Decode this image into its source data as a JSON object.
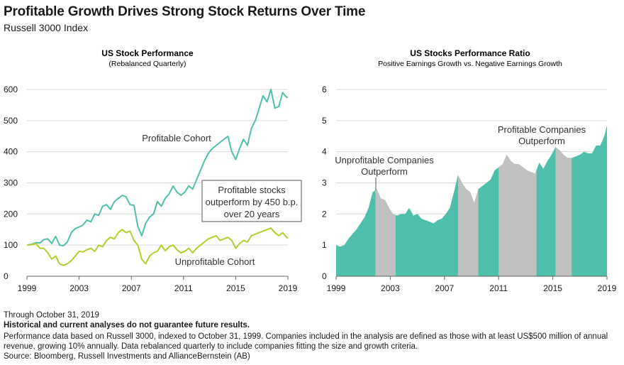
{
  "header": {
    "title": "Profitable Growth Drives Strong Stock Returns Over Time",
    "subtitle": "Russell 3000 Index"
  },
  "colors": {
    "profitable": "#4dbfab",
    "unprofitable": "#b5cc2e",
    "ratio_fill": "#4dbfab",
    "shade": "#c0c0c0"
  },
  "footer": {
    "date": "Through October 31, 2019",
    "disclaimer": "Historical and current analyses do not guarantee future results.",
    "note1": "Performance data based on Russell 3000, indexed to October 31, 1999. Companies included in the analysis are defined as those with at least US$500 million of annual",
    "note2": "revenue, growing 10% annually.  Data rebalanced quarterly to include companies fitting the size and growth criteria.",
    "source": "Source: Bloomberg, Russell Investments and AllianceBernstein (AB)"
  },
  "chart_data": [
    {
      "type": "line",
      "title": "US Stock Performance",
      "subtitle": "(Rebalanced Quarterly)",
      "xlim": [
        1999,
        2019
      ],
      "ylim": [
        0,
        600
      ],
      "xticks": [
        1999,
        2003,
        2007,
        2011,
        2015,
        2019
      ],
      "yticks": [
        0,
        100,
        200,
        300,
        400,
        500,
        600
      ],
      "annotation": {
        "line1": "Profitable stocks",
        "line2": "outperform by 450 b.p.",
        "line3": "over 20 years"
      },
      "series": [
        {
          "name": "Profitable Cohort",
          "x": [
            1999,
            1999.4,
            1999.7,
            2000.0,
            2000.3,
            2000.6,
            2000.9,
            2001.2,
            2001.5,
            2001.8,
            2002.1,
            2002.4,
            2002.7,
            2003.0,
            2003.3,
            2003.6,
            2003.9,
            2004.2,
            2004.5,
            2004.8,
            2005.1,
            2005.4,
            2005.7,
            2006.0,
            2006.3,
            2006.6,
            2006.9,
            2007.2,
            2007.5,
            2007.8,
            2008.1,
            2008.4,
            2008.7,
            2009.0,
            2009.3,
            2009.6,
            2009.9,
            2010.2,
            2010.5,
            2010.8,
            2011.1,
            2011.4,
            2011.7,
            2012.0,
            2012.3,
            2012.6,
            2012.9,
            2013.2,
            2013.5,
            2013.8,
            2014.1,
            2014.4,
            2014.7,
            2015.0,
            2015.3,
            2015.6,
            2015.9,
            2016.2,
            2016.5,
            2016.8,
            2017.1,
            2017.4,
            2017.7,
            2018.0,
            2018.3,
            2018.6,
            2018.9,
            2019.0
          ],
          "values": [
            100,
            103,
            108,
            107,
            118,
            120,
            105,
            128,
            100,
            98,
            110,
            140,
            153,
            158,
            165,
            180,
            175,
            200,
            195,
            225,
            230,
            215,
            240,
            250,
            260,
            255,
            230,
            228,
            160,
            130,
            170,
            190,
            200,
            240,
            225,
            250,
            265,
            290,
            270,
            260,
            270,
            290,
            280,
            310,
            340,
            370,
            395,
            410,
            420,
            430,
            440,
            450,
            400,
            375,
            410,
            440,
            420,
            475,
            500,
            540,
            580,
            560,
            600,
            540,
            545,
            590,
            575,
            575
          ]
        },
        {
          "name": "Unprofitable Cohort",
          "x": [
            1999,
            1999.4,
            1999.7,
            2000.0,
            2000.3,
            2000.6,
            2000.9,
            2001.2,
            2001.5,
            2001.8,
            2002.1,
            2002.4,
            2002.7,
            2003.0,
            2003.3,
            2003.6,
            2003.9,
            2004.2,
            2004.5,
            2004.8,
            2005.1,
            2005.4,
            2005.7,
            2006.0,
            2006.3,
            2006.6,
            2006.9,
            2007.2,
            2007.5,
            2007.8,
            2008.1,
            2008.4,
            2008.7,
            2009.0,
            2009.3,
            2009.6,
            2009.9,
            2010.2,
            2010.5,
            2010.8,
            2011.1,
            2011.4,
            2011.7,
            2012.0,
            2012.3,
            2012.6,
            2012.9,
            2013.2,
            2013.5,
            2013.8,
            2014.1,
            2014.4,
            2014.7,
            2015.0,
            2015.3,
            2015.6,
            2015.9,
            2016.2,
            2016.5,
            2016.8,
            2017.1,
            2017.4,
            2017.7,
            2018.0,
            2018.3,
            2018.6,
            2018.9,
            2019.0
          ],
          "values": [
            100,
            102,
            105,
            90,
            90,
            75,
            55,
            65,
            40,
            35,
            40,
            50,
            65,
            80,
            78,
            85,
            90,
            80,
            100,
            95,
            115,
            125,
            120,
            140,
            150,
            140,
            145,
            115,
            100,
            55,
            40,
            65,
            75,
            80,
            100,
            82,
            95,
            100,
            85,
            75,
            80,
            90,
            75,
            90,
            100,
            110,
            120,
            125,
            130,
            115,
            120,
            125,
            115,
            90,
            105,
            115,
            110,
            130,
            135,
            140,
            145,
            150,
            155,
            140,
            130,
            140,
            125,
            122
          ]
        }
      ]
    },
    {
      "type": "area",
      "title": "US Stocks Performance Ratio",
      "subtitle": "Positive Earnings Growth vs. Negative Earnings Growth",
      "xlim": [
        1999,
        2019
      ],
      "ylim": [
        0,
        6
      ],
      "xticks": [
        1999,
        2003,
        2007,
        2011,
        2015,
        2019
      ],
      "yticks": [
        0,
        1,
        2,
        3,
        4,
        5,
        6
      ],
      "x": [
        1999,
        1999.3,
        1999.6,
        1999.9,
        2000.2,
        2000.5,
        2000.8,
        2001.1,
        2001.4,
        2001.7,
        2002.0,
        2002.3,
        2002.6,
        2002.9,
        2003.2,
        2003.5,
        2003.8,
        2004.1,
        2004.4,
        2004.7,
        2005.0,
        2005.3,
        2005.6,
        2005.9,
        2006.2,
        2006.5,
        2006.8,
        2007.1,
        2007.4,
        2007.7,
        2008.0,
        2008.3,
        2008.6,
        2008.9,
        2009.2,
        2009.5,
        2009.8,
        2010.1,
        2010.4,
        2010.7,
        2011.0,
        2011.3,
        2011.6,
        2011.9,
        2012.2,
        2012.5,
        2012.8,
        2013.1,
        2013.4,
        2013.7,
        2014.0,
        2014.3,
        2014.6,
        2014.9,
        2015.2,
        2015.5,
        2015.8,
        2016.1,
        2016.4,
        2016.7,
        2017.0,
        2017.3,
        2017.6,
        2017.9,
        2018.2,
        2018.5,
        2018.8,
        2019.0
      ],
      "values": [
        1.0,
        0.95,
        1.0,
        1.2,
        1.35,
        1.5,
        1.7,
        1.9,
        2.2,
        2.7,
        2.8,
        2.5,
        2.45,
        2.2,
        2.0,
        1.95,
        2.0,
        2.0,
        2.2,
        1.95,
        2.0,
        1.85,
        1.8,
        1.75,
        1.7,
        1.8,
        1.85,
        2.0,
        2.2,
        2.7,
        3.25,
        3.0,
        2.8,
        2.7,
        2.35,
        2.8,
        2.9,
        3.0,
        3.1,
        3.4,
        3.5,
        3.6,
        3.9,
        3.7,
        3.6,
        3.6,
        3.5,
        3.4,
        3.35,
        3.3,
        3.65,
        3.45,
        3.7,
        3.9,
        4.15,
        4.05,
        3.9,
        3.8,
        3.8,
        3.85,
        3.9,
        4.0,
        3.95,
        3.95,
        4.2,
        4.2,
        4.5,
        4.85
      ],
      "shaded_ranges": [
        [
          2001.9,
          2003.4
        ],
        [
          2008.0,
          2009.5
        ],
        [
          2011.0,
          2013.8
        ],
        [
          2015.2,
          2016.4
        ]
      ],
      "annotations": [
        {
          "line1": "Unprofitable Companies",
          "line2": "Outperform"
        },
        {
          "line1": "Profitable Companies",
          "line2": "Outperform"
        }
      ]
    }
  ]
}
